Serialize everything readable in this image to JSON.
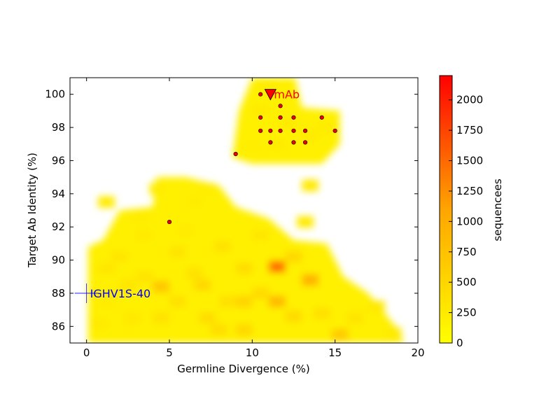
{
  "chart_data": {
    "type": "heatmap",
    "xlabel": "Germline Divergence (%)",
    "ylabel": "Target Ab Identity (%)",
    "xlim": [
      -1,
      20
    ],
    "ylim": [
      85,
      101
    ],
    "xticks": [
      0,
      5,
      10,
      15,
      20
    ],
    "yticks": [
      86,
      88,
      90,
      92,
      94,
      96,
      98,
      100
    ],
    "colorbar": {
      "label": "sequencees",
      "min": 0,
      "max": 2200,
      "ticks": [
        0,
        250,
        500,
        750,
        1000,
        1250,
        1500,
        1750,
        2000
      ],
      "colors": [
        "#ffff00",
        "#ffa500",
        "#ff0000"
      ]
    },
    "heat_cells": [
      [
        1.2,
        89.5,
        300
      ],
      [
        1.2,
        87.5,
        250
      ],
      [
        2.0,
        90.2,
        300
      ],
      [
        2.5,
        88.5,
        320
      ],
      [
        2.8,
        86.5,
        280
      ],
      [
        3.5,
        91.5,
        260
      ],
      [
        3.5,
        89.0,
        330
      ],
      [
        4.5,
        88.4,
        700
      ],
      [
        4.5,
        86.5,
        350
      ],
      [
        4.3,
        94.3,
        220
      ],
      [
        5.5,
        90.5,
        330
      ],
      [
        5.5,
        87.5,
        380
      ],
      [
        6.5,
        89.2,
        360
      ],
      [
        6.5,
        93.5,
        230
      ],
      [
        7.0,
        88.5,
        480
      ],
      [
        7.3,
        86.5,
        420
      ],
      [
        7.2,
        94.3,
        220
      ],
      [
        8.2,
        90.8,
        350
      ],
      [
        8.5,
        87.5,
        380
      ],
      [
        9.5,
        89.5,
        420
      ],
      [
        9.5,
        87.5,
        520
      ],
      [
        9.5,
        85.8,
        480
      ],
      [
        10.5,
        91.5,
        300
      ],
      [
        10.5,
        88.0,
        450
      ],
      [
        11.5,
        89.6,
        1500
      ],
      [
        11.5,
        87.5,
        850
      ],
      [
        12.5,
        90.2,
        480
      ],
      [
        12.5,
        86.6,
        450
      ],
      [
        13.2,
        92.3,
        240
      ],
      [
        13.5,
        88.8,
        950
      ],
      [
        14.2,
        86.8,
        380
      ],
      [
        15.3,
        85.5,
        650
      ],
      [
        16.2,
        86.5,
        330
      ],
      [
        17.5,
        87.2,
        280
      ],
      [
        18.5,
        85.6,
        260
      ],
      [
        1.2,
        93.5,
        230
      ],
      [
        0.8,
        86.2,
        260
      ],
      [
        3.2,
        92.6,
        230
      ],
      [
        6.0,
        91.8,
        250
      ],
      [
        8.0,
        85.8,
        420
      ],
      [
        10.5,
        99.0,
        260
      ],
      [
        11.0,
        100.5,
        230
      ],
      [
        12.2,
        98.3,
        270
      ],
      [
        13.5,
        97.5,
        250
      ],
      [
        14.5,
        98.0,
        240
      ],
      [
        11.5,
        97.0,
        240
      ],
      [
        13.5,
        94.5,
        260
      ],
      [
        10.0,
        96.8,
        220
      ]
    ],
    "series": [
      {
        "name": "dots",
        "points": [
          [
            10.5,
            100
          ],
          [
            11.7,
            99.3
          ],
          [
            10.5,
            98.6
          ],
          [
            11.7,
            98.6
          ],
          [
            12.5,
            98.6
          ],
          [
            14.2,
            98.6
          ],
          [
            10.5,
            97.8
          ],
          [
            11.1,
            97.8
          ],
          [
            11.7,
            97.8
          ],
          [
            12.5,
            97.8
          ],
          [
            13.2,
            97.8
          ],
          [
            15.0,
            97.8
          ],
          [
            11.1,
            97.1
          ],
          [
            12.5,
            97.1
          ],
          [
            13.2,
            97.1
          ],
          [
            9.0,
            96.4
          ],
          [
            5.0,
            92.3
          ]
        ]
      }
    ],
    "annotations": [
      {
        "label": "mAb",
        "x": 11.1,
        "y": 100.0,
        "marker": "triangle-down",
        "color": "#ff0000"
      },
      {
        "label": "IGHV1S-40",
        "x": 0.0,
        "y": 88.0,
        "marker": "plus",
        "color": "#0000ff"
      }
    ]
  }
}
